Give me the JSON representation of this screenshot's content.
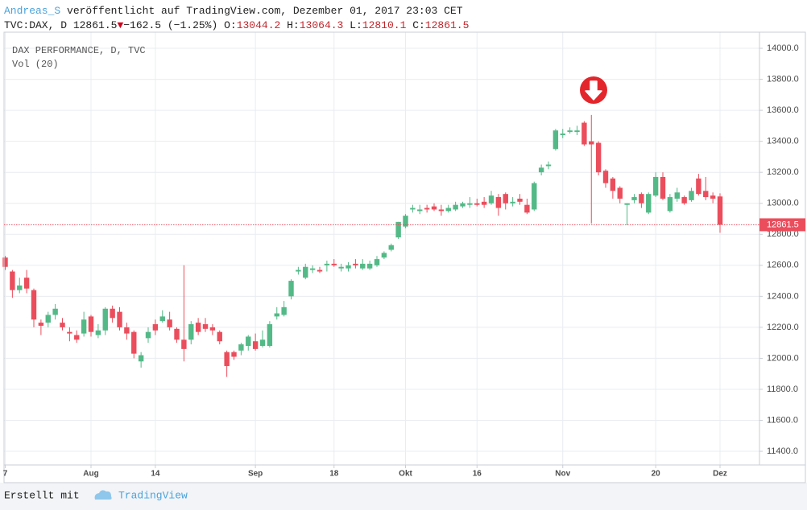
{
  "header": {
    "author": "Andreas_S",
    "published": "veröffentlicht auf TradingView.com, Dezember 01, 2017 23:03 CET",
    "symbol": "TVC:DAX, D",
    "last": "12861.5",
    "change": "−162.5 (−1.25%)",
    "ohlc": [
      {
        "label": "O:",
        "value": "13044.2"
      },
      {
        "label": "H:",
        "value": "13064.3"
      },
      {
        "label": "L:",
        "value": "12810.1"
      },
      {
        "label": "C:",
        "value": "12861.5"
      }
    ]
  },
  "footer": {
    "text": "Erstellt mit",
    "brand": "TradingView"
  },
  "chart_data": {
    "type": "candlestick",
    "title": "DAX PERFORMANCE, D, TVC",
    "subtitle": "Vol (20)",
    "up_color": "#53b987",
    "down_color": "#eb4d5c",
    "grid": true,
    "last_price_line": true,
    "open": [
      12650,
      12560,
      12440,
      12520,
      12440,
      12230,
      12230,
      12280,
      12230,
      12170,
      12150,
      12160,
      12270,
      12150,
      12180,
      12320,
      12300,
      12200,
      12170,
      11980,
      12130,
      12220,
      12240,
      12250,
      12190,
      12120,
      12120,
      12230,
      12220,
      12200,
      12170,
      12040,
      12040,
      12050,
      12080,
      12110,
      12080,
      12080,
      12270,
      12280,
      12400,
      12560,
      12520,
      12570,
      12570,
      12600,
      12610,
      12580,
      12580,
      12610,
      12580,
      12580,
      12600,
      12650,
      12700,
      12780,
      12850,
      12960,
      12950,
      12970,
      12980,
      12960,
      12950,
      12960,
      12980,
      12990,
      13000,
      13010,
      13000,
      13040,
      13060,
      13000,
      13030,
      12990,
      12960,
      13200,
      13240,
      13350,
      13440,
      13460,
      13460,
      13520,
      13400,
      13390,
      13210,
      13160,
      13100,
      12990,
      13020,
      13060,
      12940,
      13050,
      13170,
      12950,
      13030,
      13040,
      13020,
      13160,
      13080,
      13050,
      13044.2
    ],
    "high": [
      12660,
      12570,
      12520,
      12570,
      12450,
      12250,
      12300,
      12350,
      12260,
      12200,
      12180,
      12300,
      12280,
      12220,
      12330,
      12340,
      12330,
      12230,
      12180,
      12040,
      12200,
      12250,
      12310,
      12300,
      12200,
      12600,
      12240,
      12260,
      12260,
      12220,
      12180,
      12050,
      12050,
      12100,
      12150,
      12160,
      12180,
      12240,
      12330,
      12370,
      12510,
      12590,
      12610,
      12600,
      12590,
      12630,
      12640,
      12610,
      12620,
      12640,
      12640,
      12630,
      12660,
      12690,
      12740,
      12880,
      12930,
      12990,
      12990,
      12990,
      13000,
      12990,
      12990,
      13010,
      13010,
      13040,
      13030,
      13040,
      13080,
      13060,
      13070,
      13040,
      13060,
      13030,
      13140,
      13250,
      13270,
      13480,
      13480,
      13490,
      13500,
      13530,
      13570,
      13400,
      13220,
      13170,
      13110,
      13000,
      13060,
      13070,
      13070,
      13200,
      13200,
      13060,
      13100,
      13050,
      13100,
      13190,
      13170,
      13070,
      13064.3
    ],
    "low": [
      12570,
      12390,
      12420,
      12420,
      12200,
      12150,
      12200,
      12250,
      12180,
      12110,
      12100,
      12140,
      12140,
      12130,
      12150,
      12230,
      12180,
      12120,
      12000,
      11940,
      12100,
      12150,
      12230,
      12180,
      12100,
      11980,
      12090,
      12150,
      12170,
      12150,
      12090,
      11880,
      11990,
      12020,
      12050,
      12050,
      12070,
      12070,
      12250,
      12270,
      12380,
      12540,
      12510,
      12550,
      12550,
      12560,
      12590,
      12560,
      12560,
      12580,
      12570,
      12570,
      12590,
      12640,
      12690,
      12770,
      12840,
      12940,
      12930,
      12940,
      12950,
      12920,
      12940,
      12950,
      12970,
      12970,
      12980,
      12970,
      12990,
      12920,
      12960,
      12980,
      12990,
      12930,
      12950,
      13180,
      13220,
      13340,
      13420,
      13450,
      13440,
      13370,
      12870,
      13180,
      13100,
      13030,
      13000,
      12860,
      13000,
      12970,
      12930,
      13040,
      13020,
      12940,
      13010,
      12990,
      13010,
      13050,
      13020,
      13000,
      12810.1
    ],
    "close": [
      12590,
      12440,
      12470,
      12450,
      12250,
      12210,
      12280,
      12320,
      12200,
      12160,
      12120,
      12250,
      12170,
      12180,
      12320,
      12260,
      12200,
      12160,
      12030,
      12020,
      12170,
      12180,
      12270,
      12200,
      12120,
      12060,
      12220,
      12170,
      12190,
      12180,
      12110,
      11950,
      12010,
      12090,
      12140,
      12060,
      12120,
      12220,
      12290,
      12330,
      12500,
      12570,
      12590,
      12580,
      12560,
      12610,
      12600,
      12590,
      12600,
      12600,
      12610,
      12610,
      12640,
      12680,
      12730,
      12880,
      12920,
      12970,
      12960,
      12960,
      12960,
      12950,
      12970,
      12990,
      13000,
      13000,
      12990,
      12990,
      13050,
      12970,
      13000,
      13010,
      13010,
      12940,
      13130,
      13230,
      13250,
      13470,
      13450,
      13470,
      13470,
      13380,
      13380,
      13200,
      13130,
      13080,
      13030,
      13000,
      13040,
      13000,
      13060,
      13170,
      13030,
      13040,
      13070,
      13000,
      13080,
      13060,
      13040,
      13030,
      12861.5
    ],
    "xlim": [
      -0.17,
      105.52
    ],
    "xticks": [
      {
        "value": 0,
        "label": "7"
      },
      {
        "value": 12,
        "label": "Aug"
      },
      {
        "value": 21,
        "label": "14"
      },
      {
        "value": 35,
        "label": "Sep"
      },
      {
        "value": 46,
        "label": "18"
      },
      {
        "value": 56,
        "label": "Okt"
      },
      {
        "value": 66,
        "label": "16"
      },
      {
        "value": 78,
        "label": "Nov"
      },
      {
        "value": 91,
        "label": "20"
      },
      {
        "value": 100,
        "label": "Dez"
      }
    ],
    "ylim": [
      11312,
      14104
    ],
    "yticks": [
      {
        "value": 11400,
        "label": "11400.0"
      },
      {
        "value": 11600,
        "label": "11600.0"
      },
      {
        "value": 11800,
        "label": "11800.0"
      },
      {
        "value": 12000,
        "label": "12000.0"
      },
      {
        "value": 12200,
        "label": "12200.0"
      },
      {
        "value": 12400,
        "label": "12400.0"
      },
      {
        "value": 12600,
        "label": "12600.0"
      },
      {
        "value": 12800,
        "label": "12800.0"
      },
      {
        "value": 13000,
        "label": "13000.0"
      },
      {
        "value": 13200,
        "label": "13200.0"
      },
      {
        "value": 13400,
        "label": "13400.0"
      },
      {
        "value": 13600,
        "label": "13600.0"
      },
      {
        "value": 13800,
        "label": "13800.0"
      },
      {
        "value": 14000,
        "label": "14000.0"
      }
    ]
  }
}
